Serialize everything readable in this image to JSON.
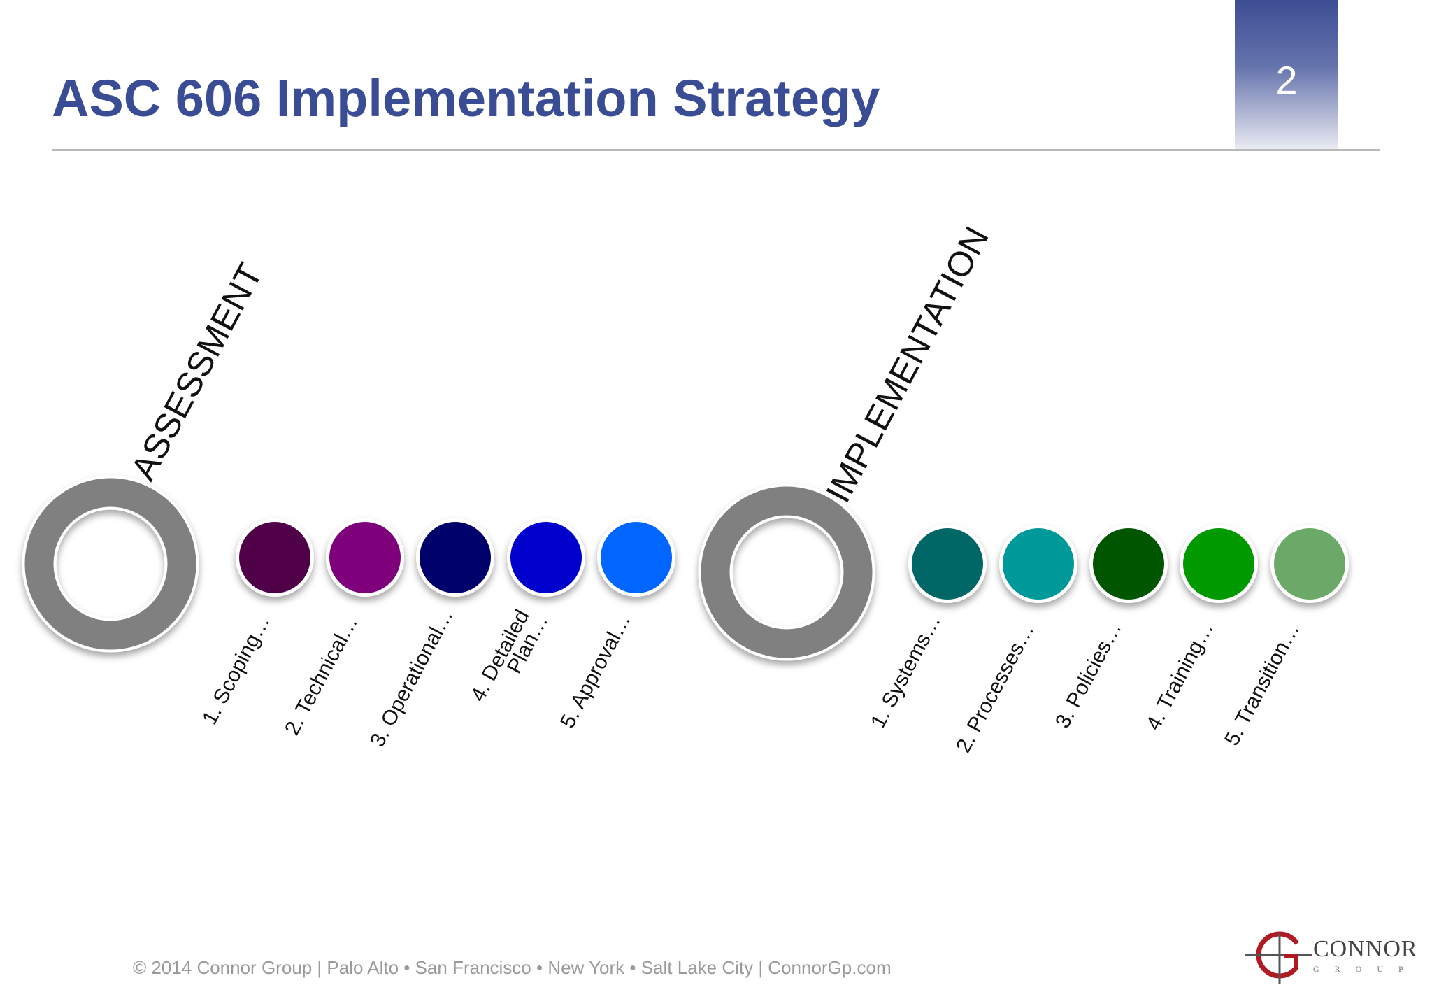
{
  "slide": {
    "title": "ASC 606 Implementation Strategy",
    "page_number": "2",
    "accent_color": "#3a4d94"
  },
  "phases": [
    {
      "label": "ASSESSMENT",
      "ring_color": "#808080",
      "steps": [
        {
          "label": "1. Scoping…",
          "color": "#4f0047"
        },
        {
          "label": "2. Technical…",
          "color": "#7f007b"
        },
        {
          "label": "3. Operational…",
          "color": "#00006b"
        },
        {
          "label": "4. Detailed",
          "label2": "Plan…",
          "color": "#0000cc"
        },
        {
          "label": "5. Approval…",
          "color": "#0066ff"
        }
      ]
    },
    {
      "label": "IMPLEMENTATION",
      "ring_color": "#808080",
      "steps": [
        {
          "label": "1. Systems…",
          "color": "#006666"
        },
        {
          "label": "2. Processes…",
          "color": "#009999"
        },
        {
          "label": "3. Policies…",
          "color": "#005500"
        },
        {
          "label": "4. Training…",
          "color": "#009900"
        },
        {
          "label": "5. Transition…",
          "color": "#6aa967"
        }
      ]
    }
  ],
  "footer": {
    "text": "© 2014 Connor Group  |  Palo Alto  •  San Francisco  •  New York  •  Salt Lake City  |  ConnorGp.com"
  },
  "logo": {
    "letter": "G",
    "word": "CONNOR",
    "sub": "GROUP",
    "color": "#b01a22"
  }
}
